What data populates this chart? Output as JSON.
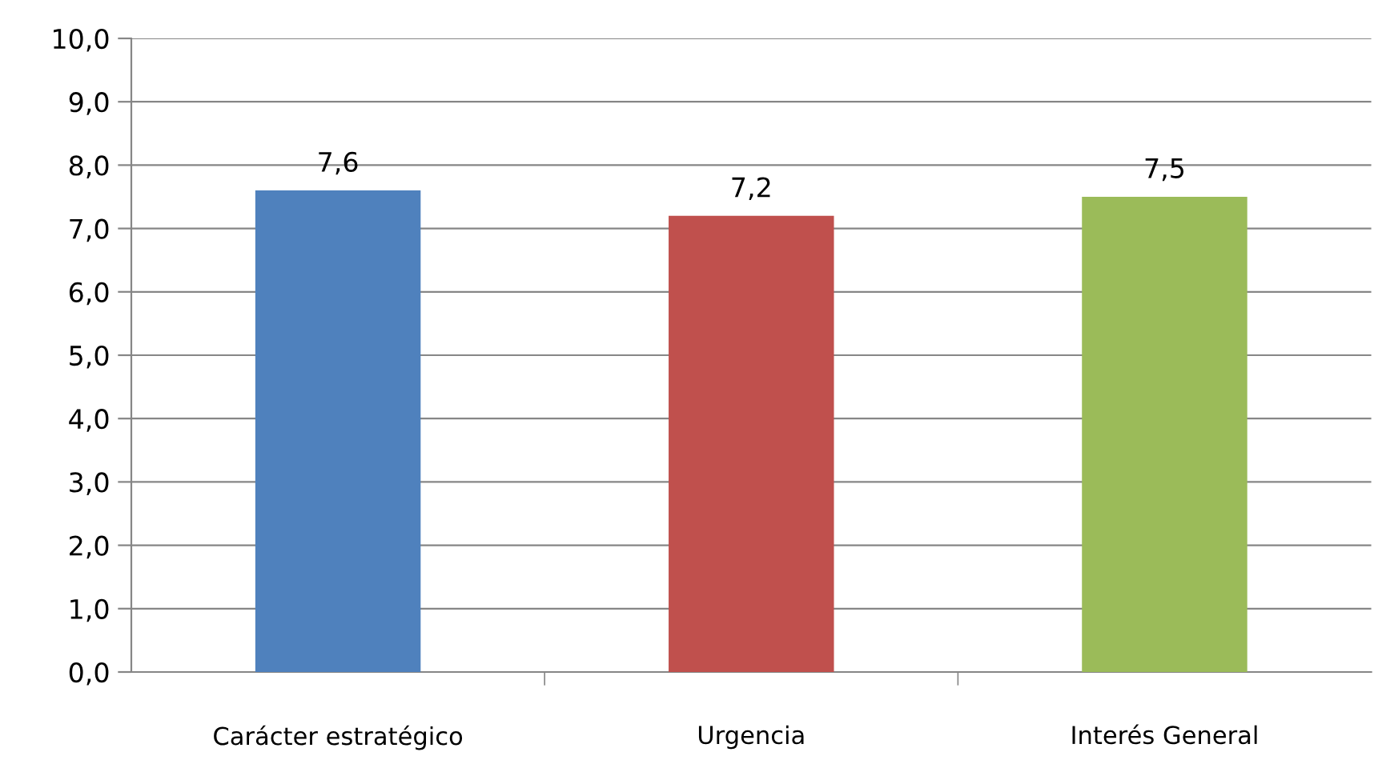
{
  "chart_data": {
    "type": "bar",
    "categories": [
      "Carácter estratégico",
      "Urgencia",
      "Interés General"
    ],
    "values": [
      7.6,
      7.2,
      7.5
    ],
    "colors": [
      "#4f81bd",
      "#c0504d",
      "#9bbb59"
    ],
    "value_labels": [
      "7,6",
      "7,2",
      "7,5"
    ],
    "ylim": [
      0,
      10
    ],
    "yticks": [
      {
        "value": 0,
        "label": "0,0"
      },
      {
        "value": 1,
        "label": "1,0"
      },
      {
        "value": 2,
        "label": "2,0"
      },
      {
        "value": 3,
        "label": "3,0"
      },
      {
        "value": 4,
        "label": "4,0"
      },
      {
        "value": 5,
        "label": "5,0"
      },
      {
        "value": 6,
        "label": "6,0"
      },
      {
        "value": 7,
        "label": "7,0"
      },
      {
        "value": 8,
        "label": "8,0"
      },
      {
        "value": 9,
        "label": "9,0"
      },
      {
        "value": 10,
        "label": "10,0"
      }
    ],
    "grid": "y",
    "legend": false
  }
}
